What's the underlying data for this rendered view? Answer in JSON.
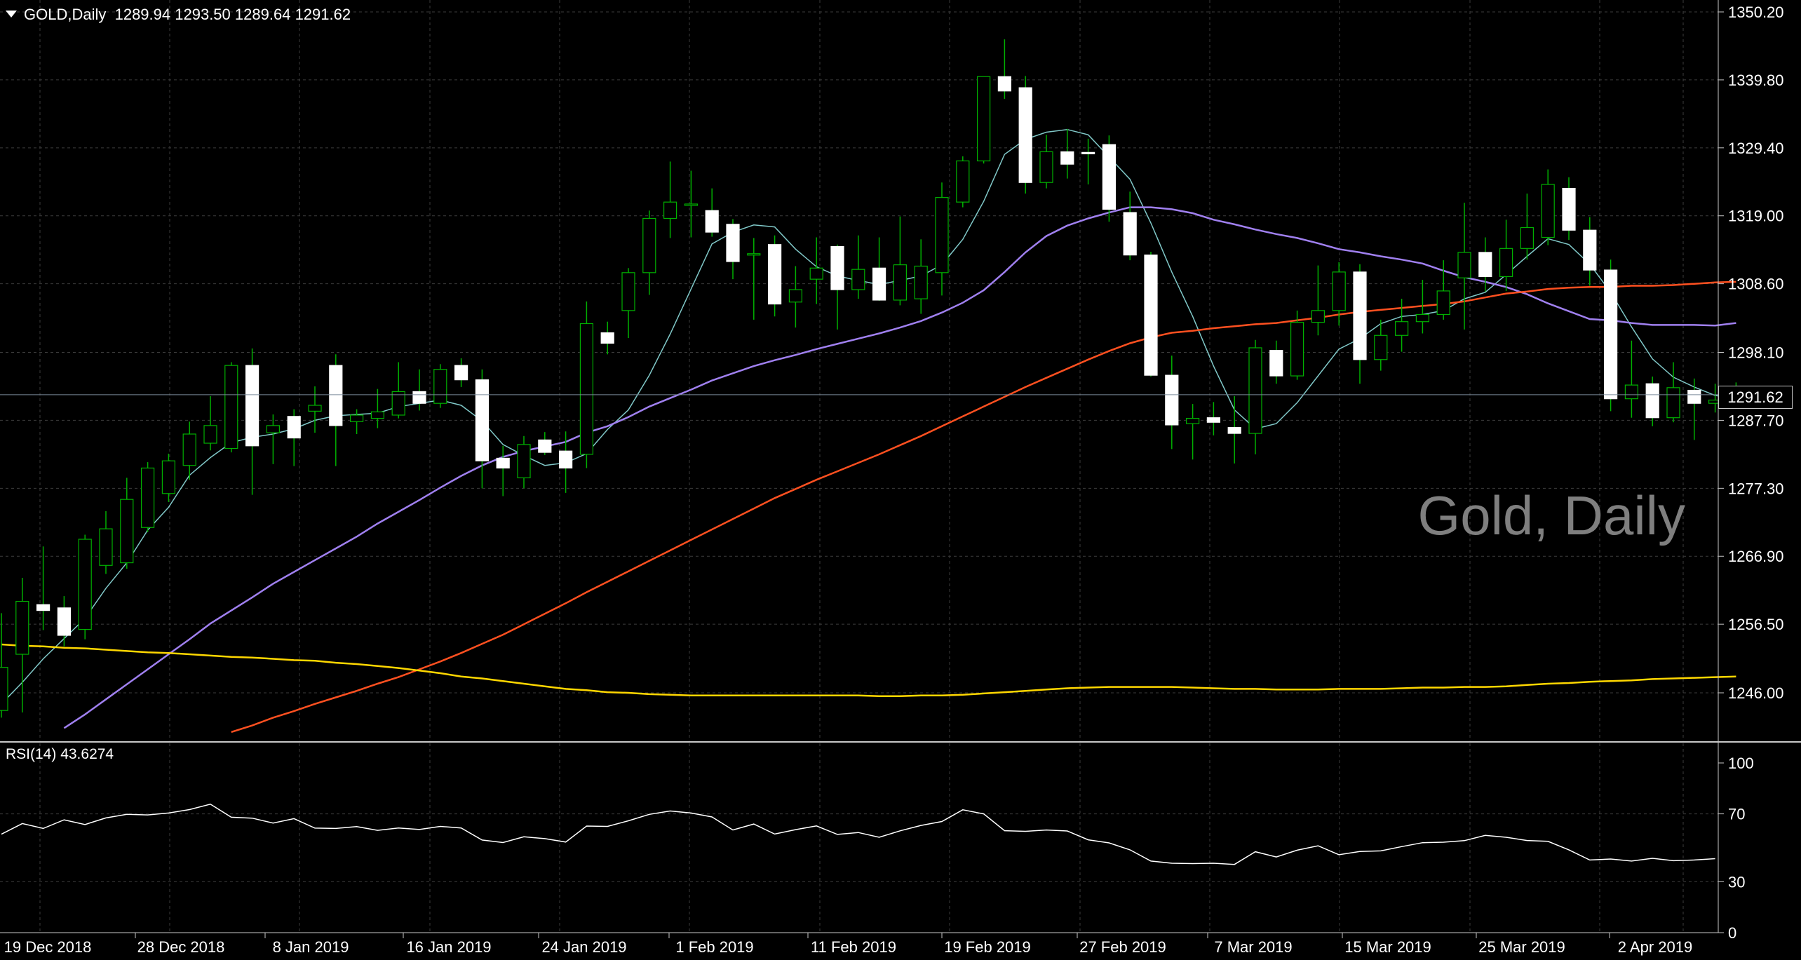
{
  "header": {
    "symbol": "GOLD,Daily",
    "open": "1289.94",
    "high": "1293.50",
    "low": "1289.64",
    "close": "1291.62"
  },
  "watermark": "Gold, Daily",
  "current_price_label": "1291.62",
  "rsi": {
    "label": "RSI(14)",
    "value": "43.6274",
    "ticks": [
      "100",
      "70",
      "30",
      "0"
    ]
  },
  "colors": {
    "background": "#000000",
    "grid": "#3c3c3c",
    "bull_candle": "#000000",
    "bear_candle": "#ffffff",
    "wick": "#00b000",
    "ma_fast": "#80c8c8",
    "ma_mid": "#a080f0",
    "ma_slow": "#ff5020",
    "ma_long": "#ffd700",
    "rsi_line": "#ffffff"
  },
  "chart_data": {
    "type": "candlestick",
    "title": "Gold, Daily",
    "ylim": [
      1240.0,
      1352.0
    ],
    "y_ticks": [
      "1350.20",
      "1339.80",
      "1329.40",
      "1319.00",
      "1308.60",
      "1298.10",
      "1287.70",
      "1277.30",
      "1266.90",
      "1256.50",
      "1246.00"
    ],
    "x_tick_labels": [
      "19 Dec 2018",
      "28 Dec 2018",
      "8 Jan 2019",
      "16 Jan 2019",
      "24 Jan 2019",
      "1 Feb 2019",
      "11 Feb 2019",
      "19 Feb 2019",
      "27 Feb 2019",
      "7 Mar 2019",
      "15 Mar 2019",
      "25 Mar 2019",
      "2 Apr 2019"
    ],
    "candles": [
      {
        "o": 1243.3,
        "h": 1258.2,
        "l": 1242.2,
        "c": 1249.9
      },
      {
        "o": 1251.9,
        "h": 1263.6,
        "l": 1243.0,
        "c": 1260.0
      },
      {
        "o": 1259.5,
        "h": 1268.4,
        "l": 1255.6,
        "c": 1258.6
      },
      {
        "o": 1259.0,
        "h": 1260.8,
        "l": 1253.1,
        "c": 1254.8
      },
      {
        "o": 1255.7,
        "h": 1270.2,
        "l": 1254.2,
        "c": 1269.5
      },
      {
        "o": 1265.5,
        "h": 1273.8,
        "l": 1264.2,
        "c": 1271.1
      },
      {
        "o": 1265.9,
        "h": 1278.9,
        "l": 1265.0,
        "c": 1275.6
      },
      {
        "o": 1271.3,
        "h": 1281.3,
        "l": 1270.6,
        "c": 1280.4
      },
      {
        "o": 1276.5,
        "h": 1282.6,
        "l": 1275.2,
        "c": 1281.5
      },
      {
        "o": 1280.8,
        "h": 1287.5,
        "l": 1278.6,
        "c": 1285.6
      },
      {
        "o": 1284.2,
        "h": 1291.4,
        "l": 1283.1,
        "c": 1286.9
      },
      {
        "o": 1283.4,
        "h": 1296.6,
        "l": 1282.8,
        "c": 1296.1
      },
      {
        "o": 1296.1,
        "h": 1298.7,
        "l": 1276.3,
        "c": 1283.8
      },
      {
        "o": 1285.8,
        "h": 1288.6,
        "l": 1281.0,
        "c": 1286.9
      },
      {
        "o": 1288.3,
        "h": 1289.4,
        "l": 1280.7,
        "c": 1285.0
      },
      {
        "o": 1289.1,
        "h": 1292.9,
        "l": 1285.8,
        "c": 1290.0
      },
      {
        "o": 1296.1,
        "h": 1297.8,
        "l": 1280.7,
        "c": 1286.9
      },
      {
        "o": 1287.5,
        "h": 1289.4,
        "l": 1285.6,
        "c": 1288.5
      },
      {
        "o": 1288.0,
        "h": 1292.5,
        "l": 1286.5,
        "c": 1289.0
      },
      {
        "o": 1288.5,
        "h": 1296.6,
        "l": 1288.0,
        "c": 1292.1
      },
      {
        "o": 1292.1,
        "h": 1295.5,
        "l": 1289.2,
        "c": 1290.3
      },
      {
        "o": 1290.3,
        "h": 1296.3,
        "l": 1289.6,
        "c": 1295.5
      },
      {
        "o": 1296.1,
        "h": 1297.2,
        "l": 1292.8,
        "c": 1293.9
      },
      {
        "o": 1293.9,
        "h": 1295.5,
        "l": 1277.3,
        "c": 1281.5
      },
      {
        "o": 1281.9,
        "h": 1283.8,
        "l": 1276.1,
        "c": 1280.4
      },
      {
        "o": 1278.9,
        "h": 1285.3,
        "l": 1277.3,
        "c": 1284.0
      },
      {
        "o": 1284.7,
        "h": 1285.9,
        "l": 1282.4,
        "c": 1282.8
      },
      {
        "o": 1283.0,
        "h": 1286.0,
        "l": 1276.6,
        "c": 1280.4
      },
      {
        "o": 1282.5,
        "h": 1305.9,
        "l": 1280.4,
        "c": 1302.5
      },
      {
        "o": 1301.1,
        "h": 1302.8,
        "l": 1297.8,
        "c": 1299.5
      },
      {
        "o": 1304.5,
        "h": 1311.0,
        "l": 1300.3,
        "c": 1310.3
      },
      {
        "o": 1310.3,
        "h": 1319.8,
        "l": 1306.9,
        "c": 1318.6
      },
      {
        "o": 1318.6,
        "h": 1327.3,
        "l": 1315.6,
        "c": 1321.1
      },
      {
        "o": 1320.7,
        "h": 1325.9,
        "l": 1315.7,
        "c": 1320.8
      },
      {
        "o": 1319.8,
        "h": 1323.2,
        "l": 1315.8,
        "c": 1316.5
      },
      {
        "o": 1317.7,
        "h": 1318.5,
        "l": 1309.3,
        "c": 1312.0
      },
      {
        "o": 1313.1,
        "h": 1315.6,
        "l": 1303.1,
        "c": 1313.2
      },
      {
        "o": 1314.6,
        "h": 1316.0,
        "l": 1303.6,
        "c": 1305.5
      },
      {
        "o": 1305.8,
        "h": 1311.3,
        "l": 1301.9,
        "c": 1307.7
      },
      {
        "o": 1309.3,
        "h": 1315.7,
        "l": 1305.5,
        "c": 1311.0
      },
      {
        "o": 1314.3,
        "h": 1314.6,
        "l": 1301.6,
        "c": 1307.7
      },
      {
        "o": 1307.7,
        "h": 1316.0,
        "l": 1306.3,
        "c": 1310.8
      },
      {
        "o": 1311.0,
        "h": 1315.7,
        "l": 1306.0,
        "c": 1306.1
      },
      {
        "o": 1306.1,
        "h": 1318.9,
        "l": 1305.3,
        "c": 1311.5
      },
      {
        "o": 1306.3,
        "h": 1315.4,
        "l": 1304.0,
        "c": 1311.3
      },
      {
        "o": 1310.3,
        "h": 1324.1,
        "l": 1306.8,
        "c": 1321.8
      },
      {
        "o": 1321.1,
        "h": 1328.1,
        "l": 1320.3,
        "c": 1327.4
      },
      {
        "o": 1327.4,
        "h": 1340.3,
        "l": 1327.0,
        "c": 1340.3
      },
      {
        "o": 1340.3,
        "h": 1346.0,
        "l": 1336.9,
        "c": 1338.1
      },
      {
        "o": 1338.6,
        "h": 1340.4,
        "l": 1322.4,
        "c": 1324.1
      },
      {
        "o": 1324.1,
        "h": 1331.4,
        "l": 1323.2,
        "c": 1328.8
      },
      {
        "o": 1328.8,
        "h": 1332.3,
        "l": 1324.7,
        "c": 1326.9
      },
      {
        "o": 1328.7,
        "h": 1330.8,
        "l": 1323.8,
        "c": 1328.6
      },
      {
        "o": 1329.9,
        "h": 1331.3,
        "l": 1318.1,
        "c": 1320.0
      },
      {
        "o": 1319.5,
        "h": 1322.7,
        "l": 1312.2,
        "c": 1313.0
      },
      {
        "o": 1313.0,
        "h": 1313.5,
        "l": 1294.4,
        "c": 1294.6
      },
      {
        "o": 1294.6,
        "h": 1297.6,
        "l": 1283.3,
        "c": 1287.0
      },
      {
        "o": 1287.2,
        "h": 1290.2,
        "l": 1281.7,
        "c": 1288.0
      },
      {
        "o": 1288.1,
        "h": 1290.5,
        "l": 1285.4,
        "c": 1287.4
      },
      {
        "o": 1286.6,
        "h": 1291.4,
        "l": 1281.1,
        "c": 1285.7
      },
      {
        "o": 1285.7,
        "h": 1300.0,
        "l": 1282.5,
        "c": 1298.8
      },
      {
        "o": 1298.4,
        "h": 1299.9,
        "l": 1293.3,
        "c": 1294.5
      },
      {
        "o": 1294.5,
        "h": 1304.5,
        "l": 1293.9,
        "c": 1302.7
      },
      {
        "o": 1302.7,
        "h": 1311.4,
        "l": 1300.7,
        "c": 1304.5
      },
      {
        "o": 1304.5,
        "h": 1311.9,
        "l": 1302.2,
        "c": 1310.4
      },
      {
        "o": 1310.4,
        "h": 1311.6,
        "l": 1293.3,
        "c": 1297.0
      },
      {
        "o": 1297.0,
        "h": 1303.1,
        "l": 1295.3,
        "c": 1300.7
      },
      {
        "o": 1300.7,
        "h": 1306.3,
        "l": 1298.2,
        "c": 1302.8
      },
      {
        "o": 1302.8,
        "h": 1309.2,
        "l": 1301.0,
        "c": 1303.9
      },
      {
        "o": 1303.9,
        "h": 1312.2,
        "l": 1303.1,
        "c": 1307.5
      },
      {
        "o": 1309.5,
        "h": 1321.0,
        "l": 1301.6,
        "c": 1313.4
      },
      {
        "o": 1313.4,
        "h": 1315.7,
        "l": 1307.4,
        "c": 1309.7
      },
      {
        "o": 1309.7,
        "h": 1318.4,
        "l": 1307.5,
        "c": 1314.0
      },
      {
        "o": 1314.0,
        "h": 1322.4,
        "l": 1312.3,
        "c": 1317.2
      },
      {
        "o": 1315.7,
        "h": 1326.1,
        "l": 1314.5,
        "c": 1323.8
      },
      {
        "o": 1323.2,
        "h": 1324.9,
        "l": 1315.3,
        "c": 1316.8
      },
      {
        "o": 1316.8,
        "h": 1318.8,
        "l": 1308.3,
        "c": 1310.7
      },
      {
        "o": 1310.7,
        "h": 1312.3,
        "l": 1289.1,
        "c": 1291.0
      },
      {
        "o": 1291.0,
        "h": 1299.9,
        "l": 1288.1,
        "c": 1293.1
      },
      {
        "o": 1293.3,
        "h": 1294.4,
        "l": 1286.8,
        "c": 1288.1
      },
      {
        "o": 1288.1,
        "h": 1296.6,
        "l": 1287.4,
        "c": 1292.7
      },
      {
        "o": 1292.3,
        "h": 1294.1,
        "l": 1284.7,
        "c": 1290.3
      },
      {
        "o": 1290.3,
        "h": 1293.3,
        "l": 1288.9,
        "c": 1290.8
      },
      {
        "o": 1289.9,
        "h": 1293.5,
        "l": 1289.6,
        "c": 1291.6
      }
    ],
    "moving_averages": [
      {
        "color": "#80c8c8",
        "values": [
          1244.3,
          1247.6,
          1251.2,
          1254.3,
          1257.4,
          1262.0,
          1265.9,
          1270.9,
          1274.4,
          1279.3,
          1282.0,
          1284.3,
          1285.1,
          1285.6,
          1286.4,
          1287.7,
          1288.4,
          1288.6,
          1288.8,
          1289.8,
          1290.3,
          1290.8,
          1290.0,
          1287.6,
          1284.0,
          1282.3,
          1280.8,
          1281.2,
          1282.6,
          1286.3,
          1289.3,
          1294.6,
          1300.9,
          1307.8,
          1314.7,
          1316.5,
          1317.6,
          1317.3,
          1313.9,
          1311.2,
          1309.8,
          1309.1,
          1308.5,
          1309.1,
          1309.8,
          1311.5,
          1315.4,
          1321.2,
          1328.4,
          1330.7,
          1331.8,
          1332.2,
          1331.4,
          1328.0,
          1324.6,
          1317.9,
          1310.4,
          1303.6,
          1296.0,
          1289.3,
          1286.4,
          1287.2,
          1290.4,
          1294.5,
          1298.6,
          1300.2,
          1302.5,
          1303.6,
          1303.9,
          1304.5,
          1306.3,
          1307.3,
          1310.0,
          1312.8,
          1315.5,
          1314.6,
          1311.6,
          1307.3,
          1302.0,
          1297.1,
          1294.3,
          1292.8,
          1291.5,
          1291.1
        ]
      },
      {
        "color": "#a080f0",
        "values": [
          null,
          null,
          null,
          1240.6,
          1242.7,
          1245.0,
          1247.3,
          1249.6,
          1251.9,
          1254.2,
          1256.6,
          1258.6,
          1260.6,
          1262.7,
          1264.5,
          1266.3,
          1268.1,
          1269.9,
          1271.9,
          1273.7,
          1275.5,
          1277.4,
          1279.2,
          1280.8,
          1282.1,
          1283.0,
          1283.7,
          1284.4,
          1285.8,
          1286.8,
          1288.2,
          1289.8,
          1291.1,
          1292.4,
          1293.8,
          1294.9,
          1296.0,
          1296.9,
          1297.7,
          1298.6,
          1299.4,
          1300.2,
          1301.0,
          1301.9,
          1302.9,
          1304.2,
          1305.7,
          1307.6,
          1310.4,
          1313.4,
          1315.9,
          1317.5,
          1318.6,
          1319.5,
          1320.3,
          1320.3,
          1320.0,
          1319.4,
          1318.4,
          1317.7,
          1316.9,
          1316.2,
          1315.6,
          1314.8,
          1313.9,
          1313.4,
          1312.8,
          1312.3,
          1311.7,
          1310.6,
          1309.6,
          1308.9,
          1308.1,
          1307.0,
          1305.6,
          1304.4,
          1303.2,
          1303.0,
          1302.6,
          1302.3,
          1302.3,
          1302.3,
          1302.2,
          1302.6
        ]
      },
      {
        "color": "#ff5020",
        "values": [
          null,
          null,
          null,
          null,
          null,
          null,
          null,
          null,
          null,
          null,
          null,
          1240.0,
          1241.0,
          1242.2,
          1243.2,
          1244.3,
          1245.3,
          1246.3,
          1247.4,
          1248.4,
          1249.6,
          1250.8,
          1252.1,
          1253.5,
          1254.9,
          1256.5,
          1258.1,
          1259.7,
          1261.4,
          1263.0,
          1264.6,
          1266.2,
          1267.8,
          1269.4,
          1271.0,
          1272.6,
          1274.2,
          1275.8,
          1277.2,
          1278.6,
          1279.9,
          1281.2,
          1282.5,
          1283.9,
          1285.3,
          1286.8,
          1288.3,
          1289.8,
          1291.3,
          1292.8,
          1294.2,
          1295.6,
          1297.0,
          1298.3,
          1299.5,
          1300.4,
          1301.1,
          1301.4,
          1301.8,
          1302.1,
          1302.4,
          1302.6,
          1303.0,
          1303.4,
          1303.9,
          1304.3,
          1304.6,
          1304.9,
          1305.2,
          1305.5,
          1305.9,
          1306.5,
          1307.1,
          1307.4,
          1307.8,
          1308.0,
          1308.1,
          1308.1,
          1308.3,
          1308.3,
          1308.4,
          1308.6,
          1308.8,
          1308.9
        ]
      },
      {
        "color": "#ffd700",
        "values": [
          1253.4,
          1253.2,
          1253.1,
          1252.9,
          1252.8,
          1252.6,
          1252.4,
          1252.2,
          1252.1,
          1251.9,
          1251.7,
          1251.5,
          1251.4,
          1251.2,
          1251.0,
          1250.9,
          1250.6,
          1250.4,
          1250.1,
          1249.8,
          1249.4,
          1249.0,
          1248.5,
          1248.2,
          1247.8,
          1247.4,
          1247.0,
          1246.6,
          1246.4,
          1246.1,
          1246.0,
          1245.8,
          1245.7,
          1245.6,
          1245.6,
          1245.6,
          1245.6,
          1245.6,
          1245.6,
          1245.6,
          1245.6,
          1245.6,
          1245.5,
          1245.5,
          1245.6,
          1245.6,
          1245.7,
          1245.9,
          1246.1,
          1246.3,
          1246.5,
          1246.7,
          1246.8,
          1246.9,
          1246.9,
          1246.9,
          1246.9,
          1246.8,
          1246.7,
          1246.6,
          1246.6,
          1246.5,
          1246.5,
          1246.5,
          1246.6,
          1246.6,
          1246.6,
          1246.7,
          1246.8,
          1246.8,
          1246.9,
          1246.9,
          1247.0,
          1247.2,
          1247.4,
          1247.5,
          1247.7,
          1247.8,
          1247.9,
          1248.1,
          1248.2,
          1248.3,
          1248.4,
          1248.5
        ]
      }
    ],
    "rsi_values": [
      58.0,
      64.3,
      61.4,
      66.5,
      63.7,
      67.6,
      69.7,
      69.4,
      70.5,
      72.5,
      75.7,
      68.0,
      67.5,
      64.6,
      67.2,
      61.6,
      61.4,
      62.5,
      60.3,
      61.7,
      60.8,
      62.6,
      61.7,
      54.6,
      53.1,
      56.5,
      55.4,
      53.4,
      62.8,
      62.6,
      65.9,
      69.7,
      71.7,
      70.5,
      68.2,
      60.5,
      64.0,
      58.1,
      60.7,
      62.9,
      57.9,
      59.0,
      56.2,
      60.0,
      63.2,
      65.5,
      72.4,
      70.0,
      60.1,
      59.7,
      60.5,
      59.9,
      54.7,
      52.9,
      48.8,
      42.2,
      40.9,
      40.7,
      40.9,
      40.2,
      47.7,
      44.6,
      48.6,
      51.2,
      45.9,
      47.8,
      48.2,
      50.7,
      53.0,
      53.3,
      54.2,
      57.3,
      56.2,
      54.3,
      53.8,
      48.8,
      42.8,
      43.4,
      42.2,
      43.8,
      42.4,
      42.8,
      43.6
    ]
  }
}
